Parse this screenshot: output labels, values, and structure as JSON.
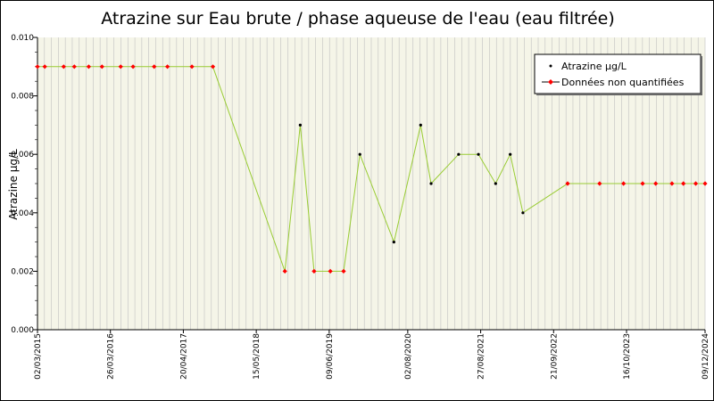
{
  "chart_data": {
    "type": "line",
    "title": "Atrazine sur Eau brute / phase aqueuse de l'eau (eau filtrée)",
    "ylabel": "Atrazine µg/L",
    "xlabel": "",
    "x_axis_type": "date",
    "xlim": [
      "2015-03-02",
      "2024-12-09"
    ],
    "ylim": [
      0,
      0.01
    ],
    "y_ticks": [
      "0.000",
      "0.002",
      "0.004",
      "0.006",
      "0.008",
      "0.010"
    ],
    "x_tick_labels": [
      "02/03/2015",
      "26/03/2016",
      "20/04/2017",
      "15/05/2018",
      "09/06/2019",
      "02/08/2020",
      "27/08/2021",
      "21/09/2022",
      "16/10/2023",
      "09/12/2024"
    ],
    "x_tick_dates": [
      "2015-03-02",
      "2016-03-26",
      "2017-04-20",
      "2018-05-15",
      "2019-06-09",
      "2020-08-02",
      "2021-08-27",
      "2022-09-21",
      "2023-10-16",
      "2024-12-09"
    ],
    "grid": true,
    "legend_position": "top-right",
    "colors": {
      "line": "#99cc33",
      "quantified_marker": "#000000",
      "non_quantified_marker": "#ff0000",
      "grid_vertical": "#c0c0c0",
      "plot_background": "#f5f5e8"
    },
    "series": [
      {
        "name": "Atrazine µg/L",
        "marker": "dot-black",
        "points": [
          {
            "x": "2015-03-02",
            "y": 0.009,
            "quantified": false
          },
          {
            "x": "2015-04-10",
            "y": 0.009,
            "quantified": false
          },
          {
            "x": "2015-07-20",
            "y": 0.009,
            "quantified": false
          },
          {
            "x": "2015-09-15",
            "y": 0.009,
            "quantified": false
          },
          {
            "x": "2015-12-01",
            "y": 0.009,
            "quantified": false
          },
          {
            "x": "2016-02-10",
            "y": 0.009,
            "quantified": false
          },
          {
            "x": "2016-05-20",
            "y": 0.009,
            "quantified": false
          },
          {
            "x": "2016-07-25",
            "y": 0.009,
            "quantified": false
          },
          {
            "x": "2016-11-15",
            "y": 0.009,
            "quantified": false
          },
          {
            "x": "2017-01-25",
            "y": 0.009,
            "quantified": false
          },
          {
            "x": "2017-06-05",
            "y": 0.009,
            "quantified": false
          },
          {
            "x": "2017-09-25",
            "y": 0.009,
            "quantified": false
          },
          {
            "x": "2018-10-15",
            "y": 0.002,
            "quantified": false
          },
          {
            "x": "2019-01-05",
            "y": 0.007,
            "quantified": true
          },
          {
            "x": "2019-03-20",
            "y": 0.002,
            "quantified": false
          },
          {
            "x": "2019-06-15",
            "y": 0.002,
            "quantified": false
          },
          {
            "x": "2019-08-25",
            "y": 0.002,
            "quantified": false
          },
          {
            "x": "2019-11-20",
            "y": 0.006,
            "quantified": true
          },
          {
            "x": "2020-05-20",
            "y": 0.003,
            "quantified": true
          },
          {
            "x": "2020-10-10",
            "y": 0.007,
            "quantified": true
          },
          {
            "x": "2020-12-05",
            "y": 0.005,
            "quantified": true
          },
          {
            "x": "2021-05-01",
            "y": 0.006,
            "quantified": true
          },
          {
            "x": "2021-08-15",
            "y": 0.006,
            "quantified": true
          },
          {
            "x": "2021-11-15",
            "y": 0.005,
            "quantified": true
          },
          {
            "x": "2022-02-01",
            "y": 0.006,
            "quantified": true
          },
          {
            "x": "2022-04-10",
            "y": 0.004,
            "quantified": true
          },
          {
            "x": "2022-12-05",
            "y": 0.005,
            "quantified": false
          },
          {
            "x": "2023-05-25",
            "y": 0.005,
            "quantified": false
          },
          {
            "x": "2023-09-30",
            "y": 0.005,
            "quantified": false
          },
          {
            "x": "2024-01-10",
            "y": 0.005,
            "quantified": false
          },
          {
            "x": "2024-03-20",
            "y": 0.005,
            "quantified": false
          },
          {
            "x": "2024-06-15",
            "y": 0.005,
            "quantified": false
          },
          {
            "x": "2024-08-15",
            "y": 0.005,
            "quantified": false
          },
          {
            "x": "2024-10-20",
            "y": 0.005,
            "quantified": false
          },
          {
            "x": "2024-12-09",
            "y": 0.005,
            "quantified": false
          }
        ]
      }
    ],
    "legend": [
      {
        "label": "Atrazine µg/L",
        "marker": "dot-black"
      },
      {
        "label": "Données non quantifiées",
        "marker": "diamond-red"
      }
    ]
  }
}
